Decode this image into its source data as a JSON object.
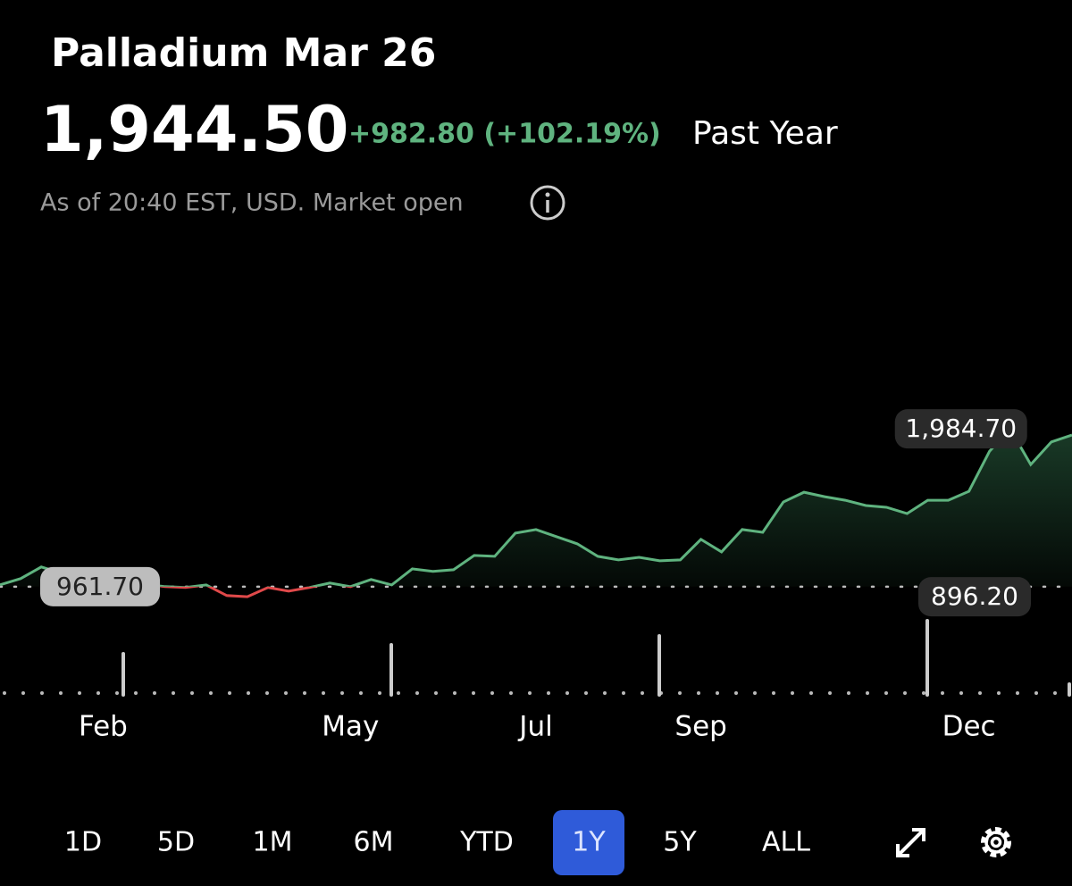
{
  "header": {
    "title": "Palladium Mar 26",
    "price": "1,944.50",
    "change": "+982.80 (+102.19%)",
    "period": "Past Year",
    "status": "As of 20:40 EST, USD. Market open"
  },
  "chart_data": {
    "type": "line",
    "categories": [
      null,
      null,
      null,
      null,
      null,
      "Feb",
      null,
      null,
      null,
      null,
      null,
      null,
      null,
      null,
      null,
      null,
      null,
      "May",
      null,
      null,
      null,
      null,
      null,
      null,
      null,
      null,
      "Jul",
      null,
      null,
      null,
      null,
      null,
      null,
      null,
      "Sep",
      null,
      null,
      null,
      null,
      null,
      null,
      null,
      null,
      null,
      null,
      null,
      null,
      "Dec",
      null,
      null,
      null,
      null,
      null
    ],
    "values": [
      973.3,
      1013.7,
      1088.9,
      1048.4,
      1060,
      1013.7,
      973.3,
      979,
      961.7,
      956,
      973,
      903.9,
      896.2,
      956,
      932.8,
      956,
      984.8,
      961.7,
      1008,
      973,
      1077.3,
      1060,
      1071.5,
      1164,
      1158,
      1308.5,
      1331.6,
      1285.4,
      1239,
      1158,
      1135,
      1152,
      1129,
      1135,
      1268,
      1187,
      1331.6,
      1314,
      1510.8,
      1574,
      1545,
      1522,
      1487.7,
      1476,
      1435.7,
      1522,
      1522,
      1580,
      1840,
      1984.7,
      1753.6,
      1900,
      1944.5
    ],
    "color": "#5fb37f",
    "down_color": "#e0494a",
    "ylim": [
      700,
      2200
    ],
    "high": {
      "value": 1984.7,
      "label": "1,984.70"
    },
    "previous_close": {
      "value": 961.7,
      "label": "961.70"
    },
    "low": {
      "value": 896.2,
      "label": "896.20"
    }
  },
  "ranges": [
    "1D",
    "5D",
    "1M",
    "6M",
    "YTD",
    "1Y",
    "5Y",
    "ALL"
  ],
  "selected_range": "1Y"
}
